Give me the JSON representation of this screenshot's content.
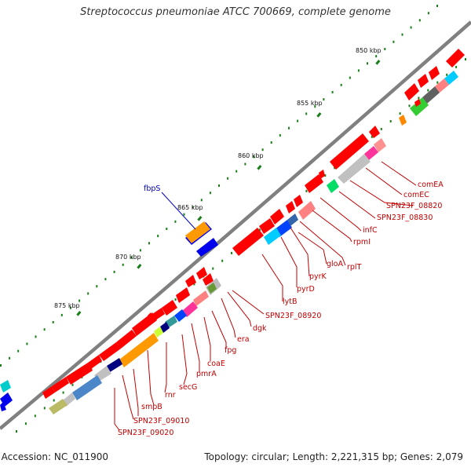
{
  "title": "Streptococcus pneumoniae ATCC 700669, complete genome",
  "footer": {
    "accession": ". Accession: NC_011900",
    "summary": "Topology: circular; Length: 2,221,315 bp; Genes: 2,079"
  },
  "ruler_ticks": [
    "850 kbp",
    "855 kbp",
    "860 kbp",
    "865 kbp",
    "870 kbp",
    "875 kbp"
  ],
  "gene_labels_forward": [
    "fbpS"
  ],
  "gene_labels_reverse": [
    "comEA",
    "comEC",
    "SPN23F_08820",
    "SPN23F_08830",
    "infC",
    "rpmI",
    "rplT",
    "gloA",
    "pyrK",
    "pyrD",
    "lytB",
    "SPN23F_08920",
    "dgk",
    "era",
    "fpg",
    "coaE",
    "pmrA",
    "secG",
    "rnr",
    "smpB",
    "SPN23F_09010",
    "SPN23F_09020"
  ],
  "colors": {
    "forward_gene": "#0000ff",
    "reverse_gene": "#ff0000",
    "backbone": "#808080",
    "label_reverse": "#c00000",
    "label_forward": "#0000c0"
  }
}
